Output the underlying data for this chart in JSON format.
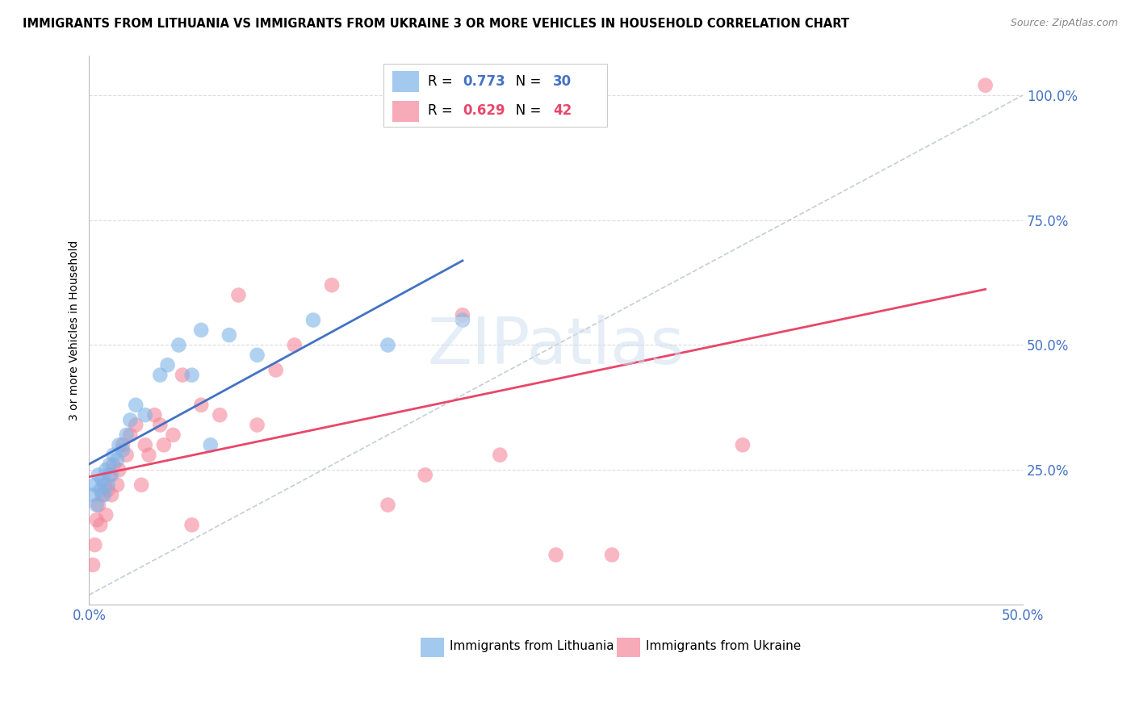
{
  "title": "IMMIGRANTS FROM LITHUANIA VS IMMIGRANTS FROM UKRAINE 3 OR MORE VEHICLES IN HOUSEHOLD CORRELATION CHART",
  "source": "Source: ZipAtlas.com",
  "ylabel": "3 or more Vehicles in Household",
  "watermark": "ZIPatlas",
  "xlim": [
    0.0,
    0.5
  ],
  "ylim": [
    -0.02,
    1.08
  ],
  "xtick_positions": [
    0.0,
    0.1,
    0.2,
    0.3,
    0.4,
    0.5
  ],
  "xtick_labels": [
    "0.0%",
    "",
    "",
    "",
    "",
    "50.0%"
  ],
  "ytick_positions": [
    0.25,
    0.5,
    0.75,
    1.0
  ],
  "ytick_labels": [
    "25.0%",
    "50.0%",
    "75.0%",
    "100.0%"
  ],
  "color_lithuania": "#7EB3E8",
  "color_ukraine": "#F4879A",
  "color_reg_lith": "#4472C4",
  "color_reg_ukr": "#E8476A",
  "color_diagonal": "#C0C8D0",
  "background_color": "#FFFFFF",
  "grid_color": "#DCDCDC",
  "legend_label_1": "Immigrants from Lithuania",
  "legend_label_2": "Immigrants from Ukraine",
  "lith_R": "0.773",
  "lith_N": "30",
  "ukr_R": "0.629",
  "ukr_N": "42",
  "lithuania_x": [
    0.002,
    0.003,
    0.004,
    0.005,
    0.006,
    0.007,
    0.008,
    0.009,
    0.01,
    0.011,
    0.012,
    0.013,
    0.015,
    0.016,
    0.018,
    0.02,
    0.022,
    0.025,
    0.03,
    0.038,
    0.042,
    0.048,
    0.055,
    0.06,
    0.065,
    0.075,
    0.09,
    0.12,
    0.16,
    0.2
  ],
  "lithuania_y": [
    0.2,
    0.22,
    0.18,
    0.24,
    0.21,
    0.23,
    0.2,
    0.25,
    0.22,
    0.26,
    0.24,
    0.28,
    0.27,
    0.3,
    0.29,
    0.32,
    0.35,
    0.38,
    0.36,
    0.44,
    0.46,
    0.5,
    0.44,
    0.53,
    0.3,
    0.52,
    0.48,
    0.55,
    0.5,
    0.55
  ],
  "ukraine_x": [
    0.002,
    0.003,
    0.004,
    0.005,
    0.006,
    0.007,
    0.008,
    0.009,
    0.01,
    0.011,
    0.012,
    0.013,
    0.015,
    0.016,
    0.018,
    0.02,
    0.022,
    0.025,
    0.028,
    0.03,
    0.032,
    0.035,
    0.038,
    0.04,
    0.045,
    0.05,
    0.055,
    0.06,
    0.07,
    0.08,
    0.09,
    0.1,
    0.11,
    0.13,
    0.16,
    0.18,
    0.2,
    0.22,
    0.25,
    0.28,
    0.35,
    0.48
  ],
  "ukraine_y": [
    0.06,
    0.1,
    0.15,
    0.18,
    0.14,
    0.2,
    0.22,
    0.16,
    0.21,
    0.24,
    0.2,
    0.26,
    0.22,
    0.25,
    0.3,
    0.28,
    0.32,
    0.34,
    0.22,
    0.3,
    0.28,
    0.36,
    0.34,
    0.3,
    0.32,
    0.44,
    0.14,
    0.38,
    0.36,
    0.6,
    0.34,
    0.45,
    0.5,
    0.62,
    0.18,
    0.24,
    0.56,
    0.28,
    0.08,
    0.08,
    0.3,
    1.02
  ]
}
